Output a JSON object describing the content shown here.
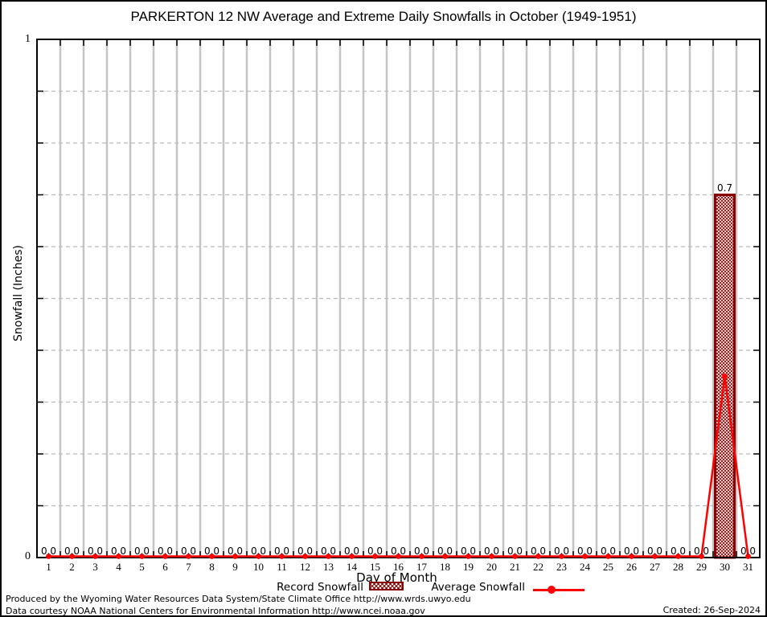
{
  "title": "PARKERTON 12 NW Average and Extreme Daily Snowfalls in October (1949-1951)",
  "axes": {
    "y_label": "Snowfall (Inches)",
    "x_label": "Day of Month",
    "y_max_tick": "1",
    "y_min_tick": "0"
  },
  "legend": {
    "record_label": "Record Snowfall",
    "average_label": "Average Snowfall"
  },
  "footer": {
    "line1": "Produced by the Wyoming Water Resources Data System/State Climate Office http://www.wrds.uwyo.edu",
    "line2": "Data courtesy NOAA National Centers for Environmental Information http://www.ncei.noaa.gov",
    "created": "Created: 26-Sep-2024"
  },
  "colors": {
    "average_line": "#ff0000",
    "record_bar": "#8b0000",
    "grid_solid": "#c4c4c4",
    "grid_dashed": "#bbbbbb",
    "plot_border": "#000000"
  },
  "chart_data": {
    "type": "bar",
    "title": "PARKERTON 12 NW Average and Extreme Daily Snowfalls in October (1949-1951)",
    "xlabel": "Day of Month",
    "ylabel": "Snowfall (Inches)",
    "xlim": [
      0.5,
      31.5
    ],
    "ylim": [
      0,
      1
    ],
    "y_tick_step": 0.1,
    "y_labeled_ticks": [
      0,
      1
    ],
    "grid": true,
    "legend_position": "below",
    "x": [
      1,
      2,
      3,
      4,
      5,
      6,
      7,
      8,
      9,
      10,
      11,
      12,
      13,
      14,
      15,
      16,
      17,
      18,
      19,
      20,
      21,
      22,
      23,
      24,
      25,
      26,
      27,
      28,
      29,
      30,
      31
    ],
    "series": [
      {
        "name": "Record Snowfall",
        "type": "bar",
        "color": "#8b0000",
        "fill": "crosshatch",
        "values": [
          0.0,
          0.0,
          0.0,
          0.0,
          0.0,
          0.0,
          0.0,
          0.0,
          0.0,
          0.0,
          0.0,
          0.0,
          0.0,
          0.0,
          0.0,
          0.0,
          0.0,
          0.0,
          0.0,
          0.0,
          0.0,
          0.0,
          0.0,
          0.0,
          0.0,
          0.0,
          0.0,
          0.0,
          0.0,
          0.7,
          0.0
        ],
        "labels": [
          "0.0",
          "0.0",
          "0.0",
          "0.0",
          "0.0",
          "0.0",
          "0.0",
          "0.0",
          "0.0",
          "0.0",
          "0.0",
          "0.0",
          "0.0",
          "0.0",
          "0.0",
          "0.0",
          "0.0",
          "0.0",
          "0.0",
          "0.0",
          "0.0",
          "0.0",
          "0.0",
          "0.0",
          "0.0",
          "0.0",
          "0.0",
          "0.0",
          "0.0",
          "0.7",
          "0.0"
        ]
      },
      {
        "name": "Average Snowfall",
        "type": "line",
        "color": "#ff0000",
        "marker": "circle",
        "values": [
          0.0,
          0.0,
          0.0,
          0.0,
          0.0,
          0.0,
          0.0,
          0.0,
          0.0,
          0.0,
          0.0,
          0.0,
          0.0,
          0.0,
          0.0,
          0.0,
          0.0,
          0.0,
          0.0,
          0.0,
          0.0,
          0.0,
          0.0,
          0.0,
          0.0,
          0.0,
          0.0,
          0.0,
          0.0,
          0.35,
          0.0
        ]
      }
    ]
  }
}
